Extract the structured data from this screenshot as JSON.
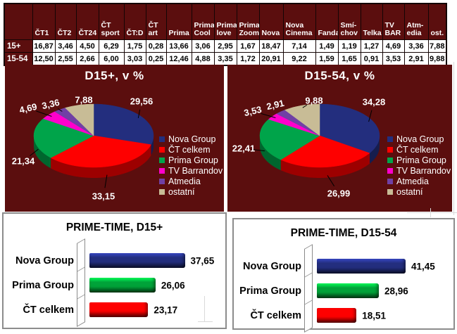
{
  "colors": {
    "panel_background": "#5b0e0e",
    "pie_slice_colors": [
      "#232e7e",
      "#fe0000",
      "#00a44a",
      "#ff00cc",
      "#7040a5",
      "#c8bc96"
    ],
    "bar_colors": [
      "#232e7e",
      "#00a339",
      "#fe0000"
    ],
    "text_on_dark": "#ffffff",
    "text_on_light": "#000000"
  },
  "table": {
    "corner_label": "",
    "columns": [
      "ČT1",
      "ČT2",
      "ČT24",
      "ČT\nsport",
      "ČT:D",
      "ČT\nart",
      "Prima",
      "Prima\nCool",
      "Prima\nlove",
      "Prima\nZoom",
      "Nova",
      "Nova\nCinema",
      "Fanda",
      "Smí-\nchov",
      "Telka",
      "TV\nBAR",
      "Atm-\nedia",
      "ost."
    ],
    "rows": [
      {
        "label": "15+",
        "values": [
          "16,87",
          "3,46",
          "4,50",
          "6,29",
          "1,75",
          "0,28",
          "13,66",
          "3,06",
          "2,95",
          "1,67",
          "18,47",
          "7,14",
          "1,49",
          "1,19",
          "1,27",
          "4,69",
          "3,36",
          "7,88"
        ]
      },
      {
        "label": "15-54",
        "values": [
          "12,50",
          "2,55",
          "2,66",
          "6,00",
          "3,03",
          "0,25",
          "12,46",
          "4,88",
          "3,35",
          "1,72",
          "20,91",
          "9,22",
          "1,59",
          "1,65",
          "0,91",
          "3,53",
          "2,91",
          "9,88"
        ]
      }
    ]
  },
  "chart_data": [
    {
      "type": "pie",
      "title": "D15+, v %",
      "legend_position": "right",
      "background": "#5b0e0e",
      "labels": [
        "Nova Group",
        "ČT celkem",
        "Prima Group",
        "TV Barrandov",
        "Atmedia",
        "ostatní"
      ],
      "values": [
        29.56,
        33.15,
        21.34,
        4.69,
        3.36,
        7.88
      ],
      "value_labels": [
        "29,56",
        "33,15",
        "21,34",
        "4,69",
        "3,36",
        "7,88"
      ],
      "colors": [
        "#232e7e",
        "#fe0000",
        "#00a44a",
        "#ff00cc",
        "#7040a5",
        "#c8bc96"
      ]
    },
    {
      "type": "pie",
      "title": "D15-54, v %",
      "legend_position": "right",
      "background": "#5b0e0e",
      "labels": [
        "Nova Group",
        "ČT celkem",
        "Prima Group",
        "TV Barrandov",
        "Atmedia",
        "ostatní"
      ],
      "values": [
        34.28,
        26.99,
        22.41,
        3.53,
        2.91,
        9.88
      ],
      "value_labels": [
        "34,28",
        "26,99",
        "22,41",
        "3,53",
        "2,91",
        "9,88"
      ],
      "colors": [
        "#232e7e",
        "#fe0000",
        "#00a44a",
        "#ff00cc",
        "#7040a5",
        "#c8bc96"
      ]
    },
    {
      "type": "bar",
      "title": "PRIME-TIME, D15+",
      "orientation": "horizontal",
      "categories": [
        "Nova Group",
        "Prima Group",
        "ČT celkem"
      ],
      "values": [
        37.65,
        26.06,
        23.17
      ],
      "value_labels": [
        "37,65",
        "26,06",
        "23,17"
      ],
      "colors": [
        "#232e7e",
        "#00a339",
        "#fe0000"
      ],
      "xlim": [
        0,
        50
      ],
      "grid": false,
      "legend_position": "none"
    },
    {
      "type": "bar",
      "title": "PRIME-TIME, D15-54",
      "orientation": "horizontal",
      "categories": [
        "Nova Group",
        "Prima Group",
        "ČT celkem"
      ],
      "values": [
        41.45,
        28.96,
        18.51
      ],
      "value_labels": [
        "41,45",
        "28,96",
        "18,51"
      ],
      "colors": [
        "#232e7e",
        "#00a339",
        "#fe0000"
      ],
      "xlim": [
        0,
        50
      ],
      "grid": false,
      "legend_position": "none"
    }
  ]
}
